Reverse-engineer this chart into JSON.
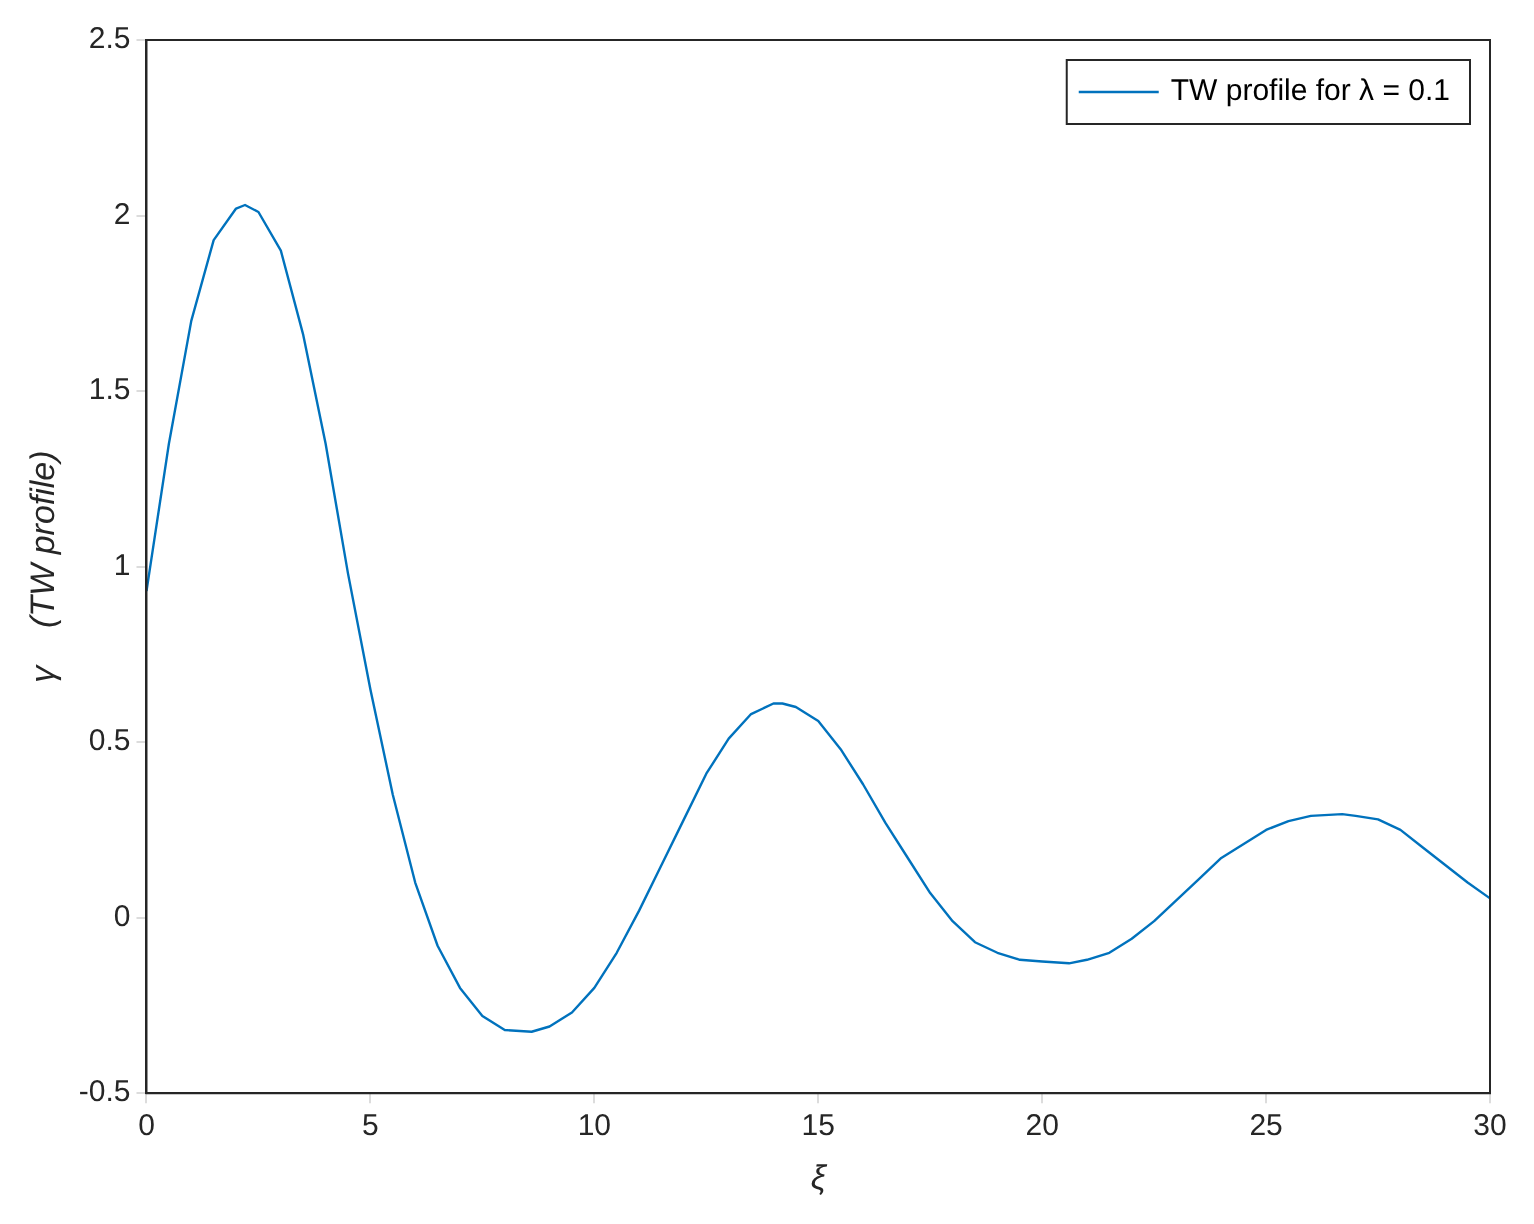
{
  "chart_data": {
    "type": "line",
    "xlabel": "ξ",
    "ylabel": "γ    (TW profile)",
    "legend": "top right",
    "grid": false,
    "marker": "none",
    "line_style": "solid",
    "xlim": [
      0,
      30
    ],
    "ylim": [
      -0.5,
      2.5
    ],
    "xticks": [
      0,
      5,
      10,
      15,
      20,
      25,
      30
    ],
    "yticks": [
      -0.5,
      0,
      0.5,
      1,
      1.5,
      2,
      2.5
    ],
    "series": [
      {
        "name": "TW profile for λ = 0.1",
        "color": "#0072bd",
        "x": [
          0,
          0.5,
          1,
          1.5,
          2,
          2.2,
          2.5,
          3,
          3.5,
          4,
          4.5,
          5,
          5.5,
          6,
          6.5,
          7,
          7.5,
          8,
          8.6,
          9,
          9.5,
          10,
          10.5,
          11,
          11.5,
          12,
          12.5,
          13,
          13.5,
          14,
          14.2,
          14.5,
          15,
          15.5,
          16,
          16.5,
          17,
          17.5,
          18,
          18.5,
          19,
          19.5,
          20,
          20.6,
          21,
          21.5,
          22,
          22.5,
          23,
          23.5,
          24,
          24.5,
          25,
          25.5,
          26,
          26.7,
          27,
          27.5,
          28,
          28.5,
          29,
          29.5,
          30
        ],
        "values": [
          0.93,
          1.35,
          1.7,
          1.93,
          2.02,
          2.03,
          2.01,
          1.9,
          1.66,
          1.35,
          0.98,
          0.65,
          0.35,
          0.1,
          -0.08,
          -0.2,
          -0.28,
          -0.32,
          -0.325,
          -0.31,
          -0.27,
          -0.2,
          -0.1,
          0.02,
          0.15,
          0.28,
          0.41,
          0.51,
          0.58,
          0.61,
          0.61,
          0.6,
          0.56,
          0.48,
          0.38,
          0.27,
          0.17,
          0.07,
          -0.01,
          -0.07,
          -0.1,
          -0.12,
          -0.125,
          -0.13,
          -0.12,
          -0.1,
          -0.06,
          -0.01,
          0.05,
          0.11,
          0.17,
          0.21,
          0.25,
          0.275,
          0.29,
          0.295,
          0.29,
          0.28,
          0.25,
          0.2,
          0.15,
          0.1,
          0.055
        ]
      }
    ]
  }
}
